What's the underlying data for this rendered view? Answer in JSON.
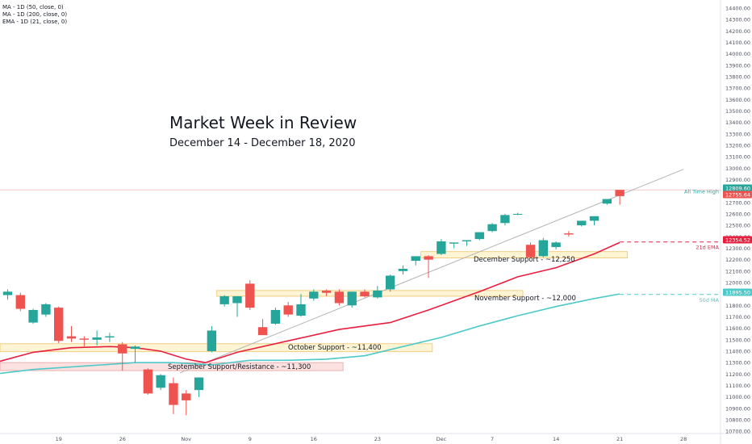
{
  "chart_data": {
    "type": "candlestick",
    "title": "Market Week in Review",
    "subtitle": "December 14 - December 18, 2020",
    "legend": [
      "MA - 1D (50, close, 0)",
      "MA - 1D (200, close, 0)",
      "EMA - 1D (21, close, 0)"
    ],
    "y_ticks": [
      10700,
      10800,
      10900,
      11000,
      11100,
      11200,
      11300,
      11400,
      11500,
      11600,
      11700,
      11800,
      11900,
      12000,
      12100,
      12200,
      12300,
      12400,
      12500,
      12600,
      12700,
      12800,
      12900,
      13000,
      13100,
      13200,
      13300,
      13400,
      13500,
      13600,
      13700,
      13800,
      13900,
      14000,
      14100,
      14200,
      14300,
      14400
    ],
    "y_tick_labels": [
      "10700.00",
      "10800.00",
      "10900.00",
      "11000.00",
      "11100.00",
      "11200.00",
      "11300.00",
      "11400.00",
      "11500.00",
      "11600.00",
      "11700.00",
      "11800.00",
      "11900.00",
      "12000.00",
      "12100.00",
      "12200.00",
      "12300.00",
      "12400.00",
      "12500.00",
      "12600.00",
      "12700.00",
      "12800.00",
      "12900.00",
      "13000.00",
      "13100.00",
      "13200.00",
      "13300.00",
      "13400.00",
      "13500.00",
      "13600.00",
      "13700.00",
      "13800.00",
      "13900.00",
      "14000.00",
      "14100.00",
      "14200.00",
      "14300.00",
      "14400.00"
    ],
    "ylim": [
      10680,
      14470
    ],
    "x_tick_labels": [
      {
        "label": "19",
        "index": 4
      },
      {
        "label": "26",
        "index": 9
      },
      {
        "label": "Nov",
        "index": 14
      },
      {
        "label": "9",
        "index": 19
      },
      {
        "label": "16",
        "index": 24
      },
      {
        "label": "23",
        "index": 29
      },
      {
        "label": "Dec",
        "index": 34
      },
      {
        "label": "7",
        "index": 38
      },
      {
        "label": "14",
        "index": 43
      },
      {
        "label": "21",
        "index": 48
      },
      {
        "label": "28",
        "index": 53
      }
    ],
    "x_range": [
      -0.6,
      55.9
    ],
    "candles": [
      {
        "o": 11890,
        "h": 11940,
        "l": 11850,
        "c": 11920
      },
      {
        "o": 11890,
        "h": 11910,
        "l": 11750,
        "c": 11770
      },
      {
        "o": 11650,
        "h": 11770,
        "l": 11640,
        "c": 11760
      },
      {
        "o": 11720,
        "h": 11820,
        "l": 11700,
        "c": 11810
      },
      {
        "o": 11780,
        "h": 11790,
        "l": 11470,
        "c": 11490
      },
      {
        "o": 11530,
        "h": 11620,
        "l": 11480,
        "c": 11510
      },
      {
        "o": 11510,
        "h": 11530,
        "l": 11440,
        "c": 11500
      },
      {
        "o": 11500,
        "h": 11580,
        "l": 11450,
        "c": 11520
      },
      {
        "o": 11520,
        "h": 11560,
        "l": 11480,
        "c": 11530
      },
      {
        "o": 11460,
        "h": 11480,
        "l": 11230,
        "c": 11380
      },
      {
        "o": 11420,
        "h": 11450,
        "l": 11300,
        "c": 11440
      },
      {
        "o": 11240,
        "h": 11250,
        "l": 11020,
        "c": 11030
      },
      {
        "o": 11080,
        "h": 11200,
        "l": 11060,
        "c": 11190
      },
      {
        "o": 11120,
        "h": 11170,
        "l": 10850,
        "c": 10930
      },
      {
        "o": 11030,
        "h": 11060,
        "l": 10840,
        "c": 10970
      },
      {
        "o": 11060,
        "h": 11170,
        "l": 11000,
        "c": 11170
      },
      {
        "o": 11400,
        "h": 11620,
        "l": 11390,
        "c": 11580
      },
      {
        "o": 11810,
        "h": 11890,
        "l": 11790,
        "c": 11880
      },
      {
        "o": 11820,
        "h": 11880,
        "l": 11700,
        "c": 11880
      },
      {
        "o": 11990,
        "h": 12020,
        "l": 11760,
        "c": 11780
      },
      {
        "o": 11610,
        "h": 11680,
        "l": 11570,
        "c": 11540
      },
      {
        "o": 11640,
        "h": 11780,
        "l": 11630,
        "c": 11760
      },
      {
        "o": 11800,
        "h": 11830,
        "l": 11700,
        "c": 11720
      },
      {
        "o": 11710,
        "h": 11900,
        "l": 11700,
        "c": 11810
      },
      {
        "o": 11860,
        "h": 11940,
        "l": 11840,
        "c": 11920
      },
      {
        "o": 11930,
        "h": 11940,
        "l": 11880,
        "c": 11910
      },
      {
        "o": 11920,
        "h": 11940,
        "l": 11800,
        "c": 11820
      },
      {
        "o": 11800,
        "h": 11920,
        "l": 11780,
        "c": 11920
      },
      {
        "o": 11920,
        "h": 11940,
        "l": 11870,
        "c": 11880
      },
      {
        "o": 11870,
        "h": 11970,
        "l": 11860,
        "c": 11930
      },
      {
        "o": 11940,
        "h": 12070,
        "l": 11920,
        "c": 12060
      },
      {
        "o": 12100,
        "h": 12150,
        "l": 12070,
        "c": 12120
      },
      {
        "o": 12190,
        "h": 12230,
        "l": 12150,
        "c": 12230
      },
      {
        "o": 12230,
        "h": 12240,
        "l": 12040,
        "c": 12200
      },
      {
        "o": 12250,
        "h": 12380,
        "l": 12240,
        "c": 12360
      },
      {
        "o": 12340,
        "h": 12350,
        "l": 12300,
        "c": 12350
      },
      {
        "o": 12360,
        "h": 12370,
        "l": 12320,
        "c": 12370
      },
      {
        "o": 12380,
        "h": 12440,
        "l": 12370,
        "c": 12440
      },
      {
        "o": 12450,
        "h": 12520,
        "l": 12440,
        "c": 12510
      },
      {
        "o": 12520,
        "h": 12600,
        "l": 12500,
        "c": 12590
      },
      {
        "o": 12600,
        "h": 12610,
        "l": 12590,
        "c": 12600
      },
      {
        "o": 12330,
        "h": 12350,
        "l": 12220,
        "c": 12220
      },
      {
        "o": 12230,
        "h": 12390,
        "l": 12220,
        "c": 12370
      },
      {
        "o": 12310,
        "h": 12360,
        "l": 12290,
        "c": 12350
      },
      {
        "o": 12430,
        "h": 12450,
        "l": 12400,
        "c": 12420
      },
      {
        "o": 12500,
        "h": 12540,
        "l": 12490,
        "c": 12540
      },
      {
        "o": 12540,
        "h": 12570,
        "l": 12500,
        "c": 12580
      },
      {
        "o": 12690,
        "h": 12730,
        "l": 12680,
        "c": 12730
      },
      {
        "o": 12810,
        "h": 12810,
        "l": 12680,
        "c": 12755.64
      }
    ],
    "series": [
      {
        "name": "EMA - 1D (21, close, 0)",
        "color": "#e91e3f",
        "end_label": "21d EMA",
        "points": [
          [
            -1,
            11300
          ],
          [
            2,
            11390
          ],
          [
            5,
            11430
          ],
          [
            8,
            11440
          ],
          [
            10,
            11430
          ],
          [
            12,
            11400
          ],
          [
            14,
            11330
          ],
          [
            15.5,
            11300
          ],
          [
            18,
            11390
          ],
          [
            22,
            11490
          ],
          [
            26,
            11590
          ],
          [
            30,
            11650
          ],
          [
            33,
            11760
          ],
          [
            37,
            11920
          ],
          [
            40,
            12050
          ],
          [
            43,
            12130
          ],
          [
            46,
            12250
          ],
          [
            48,
            12350
          ]
        ]
      },
      {
        "name": "MA - 1D (50, close, 0)",
        "color": "#4ec9c9",
        "end_label": "50d MA",
        "points": [
          [
            -1,
            11200
          ],
          [
            2,
            11240
          ],
          [
            6,
            11270
          ],
          [
            10,
            11300
          ],
          [
            13,
            11300
          ],
          [
            16,
            11280
          ],
          [
            19,
            11320
          ],
          [
            22,
            11320
          ],
          [
            25,
            11330
          ],
          [
            28,
            11360
          ],
          [
            31,
            11440
          ],
          [
            34,
            11520
          ],
          [
            37,
            11620
          ],
          [
            40,
            11710
          ],
          [
            43,
            11790
          ],
          [
            46,
            11860
          ],
          [
            48,
            11900
          ]
        ]
      }
    ],
    "dashed_extensions": [
      {
        "from_index": 48,
        "to_index": 55.9,
        "value": 12354.52,
        "color": "#e91e3f"
      },
      {
        "from_index": 48,
        "to_index": 55.9,
        "value": 11895.5,
        "color": "#4ec9c9"
      }
    ],
    "trendline": {
      "points": [
        [
          13.5,
          11210
        ],
        [
          53,
          12990
        ]
      ],
      "color": "#b0b3b8"
    },
    "all_time_high": {
      "value": 12809.6,
      "label": "All Time High"
    },
    "zones": [
      {
        "label": "December Support - ~12,250",
        "x0": 32.4,
        "x1": 48.6,
        "y0": 12215,
        "y1": 12270,
        "fill": "#fff3cc",
        "stroke": "#f0c26b"
      },
      {
        "label": "November Support - ~12,000",
        "x0": 16.4,
        "x1": 40.4,
        "y0": 11880,
        "y1": 11930,
        "fill": "#fff3cc",
        "stroke": "#f0c26b"
      },
      {
        "label": "October Support - ~11,400",
        "x0": -0.6,
        "x1": 33.3,
        "y0": 11395,
        "y1": 11465,
        "fill": "#fff3cc",
        "stroke": "#f0c26b"
      },
      {
        "label": "September Support/Resistance - ~11,300",
        "x0": -0.6,
        "x1": 26.3,
        "y0": 11230,
        "y1": 11300,
        "fill": "#fbdcdc",
        "stroke": "#e8a0a0"
      }
    ],
    "price_badges": [
      {
        "value": 12809.6,
        "label": "12809.60",
        "color": "#26a69a"
      },
      {
        "value": 12755.64,
        "label": "12755.64",
        "color": "#ef5350"
      },
      {
        "value": 12354.52,
        "label": "12354.52",
        "color": "#e91e3f"
      },
      {
        "value": 11895.5,
        "label": "11895.50",
        "color": "#4ec9c9"
      }
    ],
    "colors": {
      "up": "#26a69a",
      "down": "#ef5350"
    }
  }
}
